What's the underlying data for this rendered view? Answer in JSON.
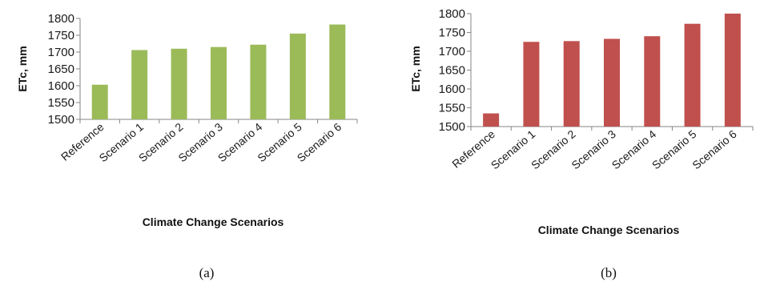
{
  "chart_data": [
    {
      "type": "bar",
      "categories": [
        "Reference",
        "Scenario 1",
        "Scenario 2",
        "Scenario 3",
        "Scenario 4",
        "Scenario 5",
        "Scenario 6"
      ],
      "values": [
        1603,
        1706,
        1710,
        1715,
        1722,
        1755,
        1782
      ],
      "xlabel": "Climate Change Scenarios",
      "ylabel": "ETc, mm",
      "ylim": [
        1500,
        1800
      ],
      "yticks": [
        1500,
        1550,
        1600,
        1650,
        1700,
        1750,
        1800
      ],
      "color": "#9bbb59",
      "grid": false,
      "panel_label": "(a)"
    },
    {
      "type": "bar",
      "categories": [
        "Reference",
        "Scenario 1",
        "Scenario 2",
        "Scenario 3",
        "Scenario 4",
        "Scenario 5",
        "Scenario 6"
      ],
      "values": [
        1535,
        1725,
        1727,
        1733,
        1740,
        1773,
        1800
      ],
      "xlabel": "Climate Change Scenarios",
      "ylabel": "ETc, mm",
      "ylim": [
        1500,
        1800
      ],
      "yticks": [
        1500,
        1550,
        1600,
        1650,
        1700,
        1750,
        1800
      ],
      "color": "#c0504d",
      "grid": false,
      "panel_label": "(b)"
    }
  ]
}
